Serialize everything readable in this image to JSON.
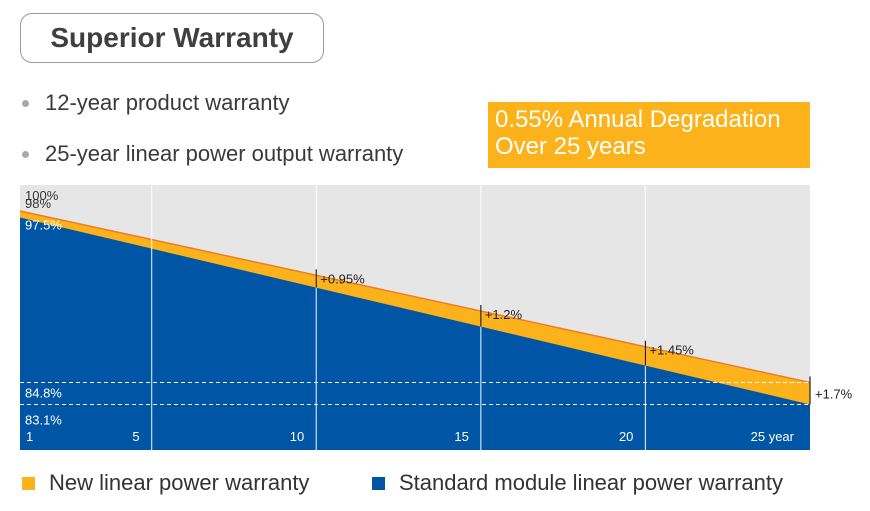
{
  "title": "Superior Warranty",
  "bullets": [
    "12-year product warranty",
    "25-year linear power output warranty"
  ],
  "callout": {
    "line1": "0.55% Annual Degradation",
    "line2": "Over 25 years"
  },
  "colors": {
    "new": "#fbb21b",
    "standard": "#0055a5",
    "background": "#e6e6e6",
    "line": "#ef7d22"
  },
  "legend": {
    "new": "New linear power warranty",
    "standard": "Standard module linear power warranty"
  },
  "chart_data": {
    "type": "area",
    "x_ticks": [
      "1",
      "5",
      "10",
      "15",
      "20",
      "25 year"
    ],
    "x_tick_values": [
      1,
      5,
      10,
      15,
      20,
      25
    ],
    "xlim": [
      1,
      25
    ],
    "ylim": [
      79.6,
      100
    ],
    "series": [
      {
        "name": "New linear power warranty",
        "x": [
          1,
          25
        ],
        "y": [
          98,
          84.8
        ]
      },
      {
        "name": "Standard module linear power warranty",
        "x": [
          1,
          25
        ],
        "y": [
          97.5,
          83.1
        ]
      }
    ],
    "y_labels": [
      {
        "text": "100%",
        "value": 100
      },
      {
        "text": "98%",
        "value": 98
      },
      {
        "text": "97.5%",
        "value": 97.5
      },
      {
        "text": "84.8%",
        "value": 84.8
      },
      {
        "text": "83.1%",
        "value": 83.1
      }
    ],
    "dashed_lines": [
      84.8,
      83.1
    ],
    "annotations": [
      {
        "text": "+0.95%",
        "x": 10
      },
      {
        "text": "+1.2%",
        "x": 15
      },
      {
        "text": "+1.45%",
        "x": 20
      },
      {
        "text": "+1.7%",
        "x": 25
      }
    ]
  }
}
